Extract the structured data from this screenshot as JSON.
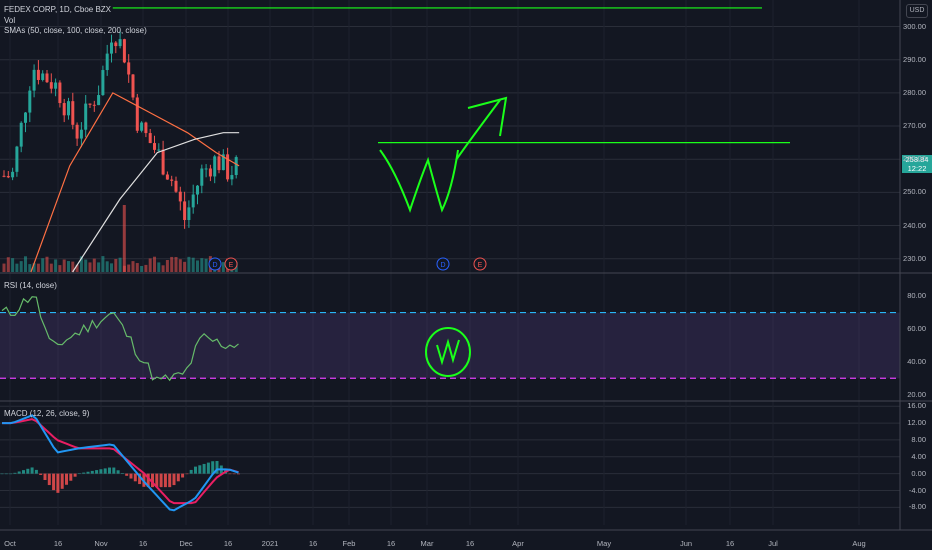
{
  "header": {
    "symbol_line": "FEDEX CORP, 1D, Cboe BZX",
    "vol_label": "Vol",
    "sma_label": "SMAs (50, close, 100, close, 200, close)",
    "currency": "USD"
  },
  "last_price": {
    "value": "258.84",
    "countdown": "12:22"
  },
  "rsi_panel": {
    "label": "RSI (14, close)",
    "ticks": [
      "80.00",
      "60.00",
      "40.00",
      "20.00"
    ]
  },
  "macd_panel": {
    "label": "MACD (12, 26, close, 9)",
    "ticks": [
      "16.00",
      "12.00",
      "8.00",
      "4.00",
      "0.00",
      "-4.00",
      "-8.00"
    ]
  },
  "price_ticks": [
    "300.00",
    "290.00",
    "280.00",
    "270.00",
    "260.00",
    "250.00",
    "240.00",
    "230.00"
  ],
  "date_ticks": [
    "Oct",
    "16",
    "Nov",
    "16",
    "Dec",
    "16",
    "2021",
    "16",
    "Feb",
    "16",
    "Mar",
    "16",
    "Apr",
    "May",
    "Jun",
    "16",
    "Jul",
    "Aug"
  ],
  "event_markers": [
    "D",
    "E",
    "D",
    "E"
  ],
  "colors": {
    "up": "#26a69a",
    "down": "#ef5350",
    "sma50": "#ff7043",
    "sma100": "#e0e0e0",
    "annotation": "#1aff1a",
    "rsi": "#66bb6a",
    "macd": "#2196f3",
    "signal": "#e91e63"
  },
  "chart_data": [
    {
      "type": "candlestick",
      "title": "FEDEX CORP, 1D, Cboe BZX",
      "x": [
        "2020-10-01",
        "2020-10-15",
        "2020-11-01",
        "2020-11-15",
        "2020-12-01",
        "2020-12-10",
        "2020-12-18",
        "2020-12-28",
        "2021-01-10",
        "2021-01-20",
        "2021-01-29",
        "2021-02-10",
        "2021-02-20",
        "2021-03-01",
        "2021-03-08"
      ],
      "close": [
        255,
        288,
        282,
        268,
        282,
        300,
        292,
        270,
        262,
        254,
        242,
        256,
        260,
        256,
        258.84
      ],
      "ylim": [
        226,
        308
      ],
      "sma_series": [
        {
          "name": "SMA 50",
          "x": [
            "2020-10-14",
            "2020-11-10",
            "2020-12-10",
            "2021-01-05",
            "2021-01-31",
            "2021-02-20",
            "2021-03-08"
          ],
          "values": [
            226,
            258,
            280,
            274,
            268,
            262,
            258
          ]
        },
        {
          "name": "SMA 100",
          "x": [
            "2020-11-12",
            "2020-12-15",
            "2021-01-10",
            "2021-02-05",
            "2021-02-25",
            "2021-03-08"
          ],
          "values": [
            226,
            248,
            262,
            266,
            268,
            268
          ]
        }
      ],
      "annotations": {
        "horizontal_levels": [
          305,
          265
        ],
        "arrow_target": 280
      }
    },
    {
      "type": "line",
      "name": "RSI (14, close)",
      "x": [
        "2020-10-01",
        "2020-10-16",
        "2020-10-28",
        "2020-11-16",
        "2020-12-10",
        "2020-12-28",
        "2021-01-10",
        "2021-01-29",
        "2021-02-10",
        "2021-02-20",
        "2021-03-01",
        "2021-03-08"
      ],
      "values": [
        70,
        82,
        48,
        58,
        70,
        45,
        28,
        32,
        55,
        52,
        50,
        52
      ],
      "ylim": [
        18,
        88
      ],
      "levels": [
        70,
        30
      ]
    },
    {
      "type": "line",
      "name": "MACD (12, 26, close, 9)",
      "x": [
        "2020-10-01",
        "2020-10-16",
        "2020-11-01",
        "2020-11-16",
        "2020-12-10",
        "2021-01-01",
        "2021-01-20",
        "2021-02-05",
        "2021-02-20",
        "2021-03-01",
        "2021-03-08"
      ],
      "series": [
        {
          "name": "MACD",
          "values": [
            12,
            14,
            5,
            6,
            7,
            -2,
            -9,
            -6,
            1,
            1,
            0.2
          ]
        },
        {
          "name": "Signal",
          "values": [
            12,
            13,
            8,
            6,
            6,
            0,
            -7,
            -7,
            -1,
            1,
            0.3
          ]
        }
      ],
      "ylim": [
        -11,
        17
      ]
    }
  ]
}
